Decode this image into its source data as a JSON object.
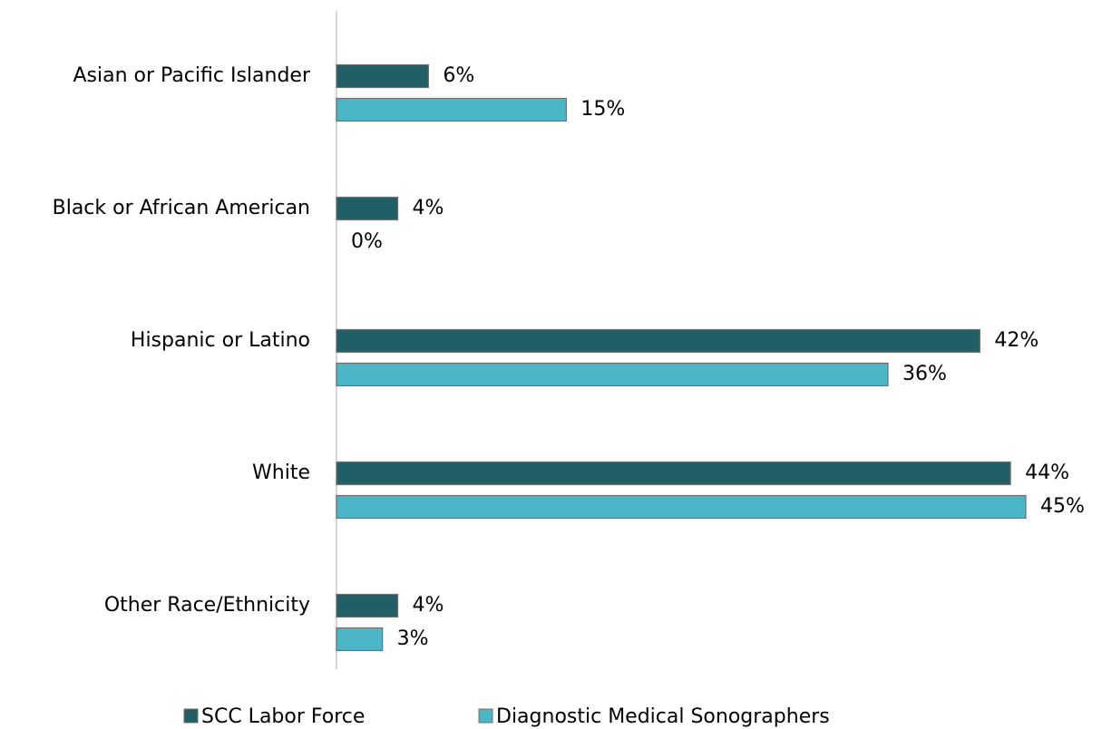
{
  "chart_data": {
    "type": "barh",
    "categories": [
      "Asian or Pacific Islander",
      "Black or African American",
      "Hispanic or Latino",
      "White",
      "Other Race/Ethnicity"
    ],
    "series": [
      {
        "name": "SCC Labor Force",
        "color": "#225e66",
        "values": [
          6,
          4,
          42,
          44,
          4
        ],
        "value_labels": [
          "6%",
          "4%",
          "42%",
          "44%",
          "4%"
        ]
      },
      {
        "name": "Diagnostic Medical Sonographers",
        "color": "#4bb6c6",
        "values": [
          15,
          0,
          36,
          45,
          3
        ],
        "value_labels": [
          "15%",
          "0%",
          "36%",
          "45%",
          "3%"
        ]
      }
    ],
    "legend": "bottom"
  }
}
